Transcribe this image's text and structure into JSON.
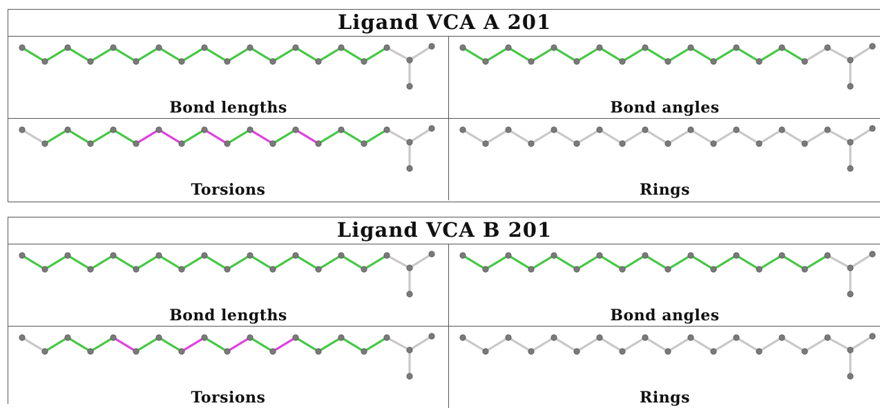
{
  "panels": [
    {
      "title": "Ligand VCA A 201",
      "cells": [
        {
          "label": "Bond lengths",
          "colors": [
            "g",
            "g",
            "g",
            "g",
            "g",
            "g",
            "g",
            "g",
            "g",
            "g",
            "g",
            "g",
            "g",
            "g",
            "g",
            "g"
          ]
        },
        {
          "label": "Bond angles",
          "colors": [
            "g",
            "g",
            "g",
            "g",
            "g",
            "g",
            "g",
            "g",
            "g",
            "g",
            "g",
            "g",
            "g",
            "g",
            "g",
            "x"
          ]
        },
        {
          "label": "Torsions",
          "colors": [
            "x",
            "g",
            "g",
            "g",
            "g",
            "m",
            "m",
            "g",
            "m",
            "g",
            "m",
            "g",
            "m",
            "g",
            "g",
            "g"
          ]
        },
        {
          "label": "Rings",
          "colors": [
            "x",
            "x",
            "x",
            "x",
            "x",
            "x",
            "x",
            "x",
            "x",
            "x",
            "x",
            "x",
            "x",
            "x",
            "x",
            "x"
          ]
        }
      ]
    },
    {
      "title": "Ligand VCA B 201",
      "cells": [
        {
          "label": "Bond lengths",
          "colors": [
            "g",
            "g",
            "g",
            "g",
            "g",
            "g",
            "g",
            "g",
            "g",
            "g",
            "g",
            "g",
            "g",
            "g",
            "g",
            "g"
          ]
        },
        {
          "label": "Bond angles",
          "colors": [
            "g",
            "g",
            "g",
            "g",
            "g",
            "g",
            "g",
            "g",
            "g",
            "g",
            "g",
            "g",
            "g",
            "g",
            "g",
            "g"
          ]
        },
        {
          "label": "Torsions",
          "colors": [
            "x",
            "g",
            "g",
            "g",
            "m",
            "g",
            "g",
            "m",
            "g",
            "m",
            "g",
            "m",
            "g",
            "g",
            "g",
            "g"
          ]
        },
        {
          "label": "Rings",
          "colors": [
            "x",
            "x",
            "x",
            "x",
            "x",
            "x",
            "x",
            "x",
            "x",
            "x",
            "x",
            "x",
            "x",
            "x",
            "x",
            "x"
          ]
        }
      ]
    }
  ],
  "palette": {
    "g": "#44c844",
    "m": "#e040e0",
    "x": "#c8c8c8",
    "atom": "#7a7a7a"
  }
}
